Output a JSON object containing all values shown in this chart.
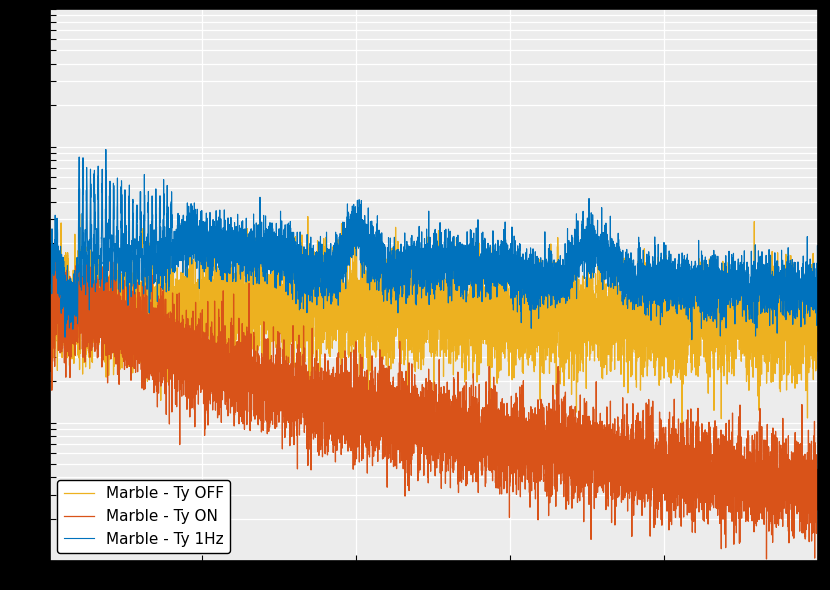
{
  "legend_labels": [
    "Marble - Ty 1Hz",
    "Marble - Ty ON",
    "Marble - Ty OFF"
  ],
  "colors": [
    "#0072bd",
    "#d95319",
    "#edb120"
  ],
  "plot_bg": "#ececec",
  "fig_bg": "#000000",
  "grid_color": "#ffffff",
  "linewidth_1hz": 0.8,
  "linewidth_on": 0.9,
  "linewidth_off": 0.9,
  "legend_fontsize": 11,
  "tick_fontsize": 10
}
